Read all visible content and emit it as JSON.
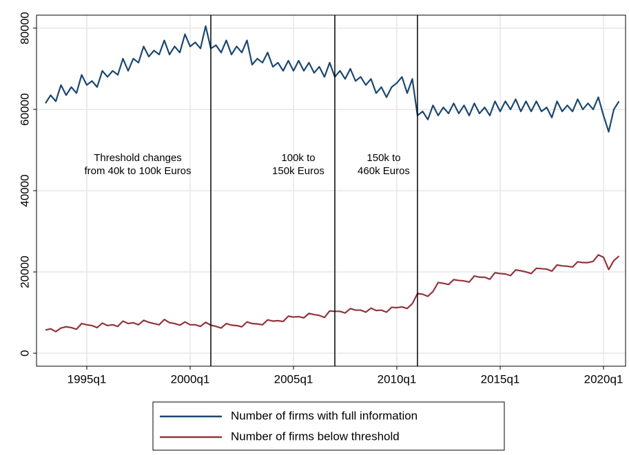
{
  "chart_data": {
    "type": "line",
    "categories": [
      "1993q1",
      "1993q2",
      "1993q3",
      "1993q4",
      "1994q1",
      "1994q2",
      "1994q3",
      "1994q4",
      "1995q1",
      "1995q2",
      "1995q3",
      "1995q4",
      "1996q1",
      "1996q2",
      "1996q3",
      "1996q4",
      "1997q1",
      "1997q2",
      "1997q3",
      "1997q4",
      "1998q1",
      "1998q2",
      "1998q3",
      "1998q4",
      "1999q1",
      "1999q2",
      "1999q3",
      "1999q4",
      "2000q1",
      "2000q2",
      "2000q3",
      "2000q4",
      "2001q1",
      "2001q2",
      "2001q3",
      "2001q4",
      "2002q1",
      "2002q2",
      "2002q3",
      "2002q4",
      "2003q1",
      "2003q2",
      "2003q3",
      "2003q4",
      "2004q1",
      "2004q2",
      "2004q3",
      "2004q4",
      "2005q1",
      "2005q2",
      "2005q3",
      "2005q4",
      "2006q1",
      "2006q2",
      "2006q3",
      "2006q4",
      "2007q1",
      "2007q2",
      "2007q3",
      "2007q4",
      "2008q1",
      "2008q2",
      "2008q3",
      "2008q4",
      "2009q1",
      "2009q2",
      "2009q3",
      "2009q4",
      "2010q1",
      "2010q2",
      "2010q3",
      "2010q4",
      "2011q1",
      "2011q2",
      "2011q3",
      "2011q4",
      "2012q1",
      "2012q2",
      "2012q3",
      "2012q4",
      "2013q1",
      "2013q2",
      "2013q3",
      "2013q4",
      "2014q1",
      "2014q2",
      "2014q3",
      "2014q4",
      "2015q1",
      "2015q2",
      "2015q3",
      "2015q4",
      "2016q1",
      "2016q2",
      "2016q3",
      "2016q4",
      "2017q1",
      "2017q2",
      "2017q3",
      "2017q4",
      "2018q1",
      "2018q2",
      "2018q3",
      "2018q4",
      "2019q1",
      "2019q2",
      "2019q3",
      "2019q4",
      "2020q1",
      "2020q2",
      "2020q3",
      "2020q4"
    ],
    "series": [
      {
        "name": "Number of firms with full information",
        "color": "#1a476f",
        "values": [
          61500,
          63500,
          62000,
          66000,
          63500,
          65500,
          64000,
          68500,
          66000,
          67000,
          65500,
          69500,
          68000,
          69500,
          68500,
          72500,
          69500,
          72500,
          71500,
          75500,
          73000,
          74500,
          73500,
          77000,
          73500,
          75500,
          74000,
          78500,
          75500,
          76500,
          75000,
          80500,
          75000,
          75800,
          74000,
          77000,
          73500,
          75500,
          74000,
          77000,
          71000,
          72500,
          71500,
          74000,
          70500,
          71500,
          69500,
          72000,
          69500,
          72000,
          69500,
          71500,
          69000,
          70500,
          68000,
          71500,
          68000,
          69500,
          67500,
          70000,
          67000,
          68000,
          66000,
          67500,
          64000,
          65500,
          63000,
          65500,
          66500,
          68000,
          64000,
          67500,
          58500,
          59500,
          57500,
          61000,
          58500,
          60500,
          59000,
          61500,
          59000,
          61000,
          58500,
          61500,
          59000,
          60500,
          58500,
          62000,
          59500,
          62000,
          60000,
          62500,
          59500,
          62000,
          59500,
          62000,
          59500,
          60500,
          58000,
          62000,
          59500,
          61000,
          59500,
          62500,
          60000,
          61500,
          60000,
          63000,
          58500,
          54500,
          60000,
          62000
        ]
      },
      {
        "name": "Number of firms below threshold",
        "color": "#90353b",
        "values": [
          5700,
          6000,
          5300,
          6200,
          6500,
          6300,
          5900,
          7300,
          7000,
          6800,
          6300,
          7400,
          6800,
          7000,
          6600,
          7900,
          7300,
          7500,
          7000,
          8100,
          7600,
          7300,
          7000,
          8300,
          7500,
          7300,
          6900,
          7700,
          7000,
          7000,
          6600,
          7600,
          6900,
          6600,
          6200,
          7300,
          6900,
          6800,
          6500,
          7700,
          7300,
          7200,
          7000,
          8200,
          7900,
          8000,
          7800,
          9100,
          8900,
          9000,
          8700,
          9800,
          9500,
          9300,
          8800,
          10400,
          10300,
          10300,
          9900,
          11000,
          10600,
          10600,
          10100,
          11100,
          10500,
          10600,
          10100,
          11300,
          11200,
          11400,
          11000,
          12200,
          14700,
          14500,
          14000,
          15200,
          17400,
          17200,
          16900,
          18100,
          17900,
          17800,
          17500,
          19000,
          18700,
          18700,
          18200,
          19800,
          19600,
          19500,
          19100,
          20500,
          20300,
          20000,
          19600,
          20900,
          20800,
          20700,
          20200,
          21700,
          21500,
          21400,
          21200,
          22500,
          22300,
          22300,
          22600,
          24200,
          23600,
          20600,
          22800,
          23900
        ]
      }
    ],
    "xticks": [
      "1995q1",
      "2000q1",
      "2005q1",
      "2010q1",
      "2015q1",
      "2020q1"
    ],
    "ylim": [
      -3200,
      83200
    ],
    "yticks": [
      0,
      20000,
      40000,
      60000,
      80000
    ],
    "grid": true,
    "vlines": [
      "2001q1",
      "2007q1",
      "2011q1"
    ],
    "annotations": [
      [
        "Threshold changes",
        "from 40k to 100k Euros"
      ],
      [
        "100k to",
        "150k Euros"
      ],
      [
        "150k to",
        "460k Euros"
      ]
    ],
    "legend": "bottom"
  }
}
